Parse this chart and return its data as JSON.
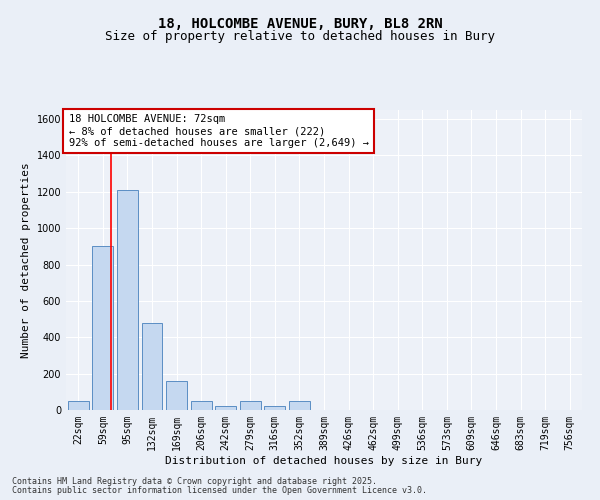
{
  "title1": "18, HOLCOMBE AVENUE, BURY, BL8 2RN",
  "title2": "Size of property relative to detached houses in Bury",
  "xlabel": "Distribution of detached houses by size in Bury",
  "ylabel": "Number of detached properties",
  "categories": [
    "22sqm",
    "59sqm",
    "95sqm",
    "132sqm",
    "169sqm",
    "206sqm",
    "242sqm",
    "279sqm",
    "316sqm",
    "352sqm",
    "389sqm",
    "426sqm",
    "462sqm",
    "499sqm",
    "536sqm",
    "573sqm",
    "609sqm",
    "646sqm",
    "683sqm",
    "719sqm",
    "756sqm"
  ],
  "values": [
    50,
    900,
    1210,
    480,
    160,
    50,
    20,
    50,
    20,
    50,
    0,
    0,
    0,
    0,
    0,
    0,
    0,
    0,
    0,
    0,
    0
  ],
  "bar_color": "#c5d8f0",
  "bar_edge_color": "#5b8ec4",
  "ylim": [
    0,
    1650
  ],
  "yticks": [
    0,
    200,
    400,
    600,
    800,
    1000,
    1200,
    1400,
    1600
  ],
  "property_line_x": 1.35,
  "annotation_text": "18 HOLCOMBE AVENUE: 72sqm\n← 8% of detached houses are smaller (222)\n92% of semi-detached houses are larger (2,649) →",
  "annotation_box_color": "#ffffff",
  "annotation_box_edge": "#cc0000",
  "footer1": "Contains HM Land Registry data © Crown copyright and database right 2025.",
  "footer2": "Contains public sector information licensed under the Open Government Licence v3.0.",
  "bg_color": "#eaeff7",
  "plot_bg_color": "#edf1f8",
  "grid_color": "#ffffff",
  "title_fontsize": 10,
  "subtitle_fontsize": 9,
  "axis_label_fontsize": 8,
  "tick_fontsize": 7,
  "annotation_fontsize": 7.5,
  "footer_fontsize": 6
}
